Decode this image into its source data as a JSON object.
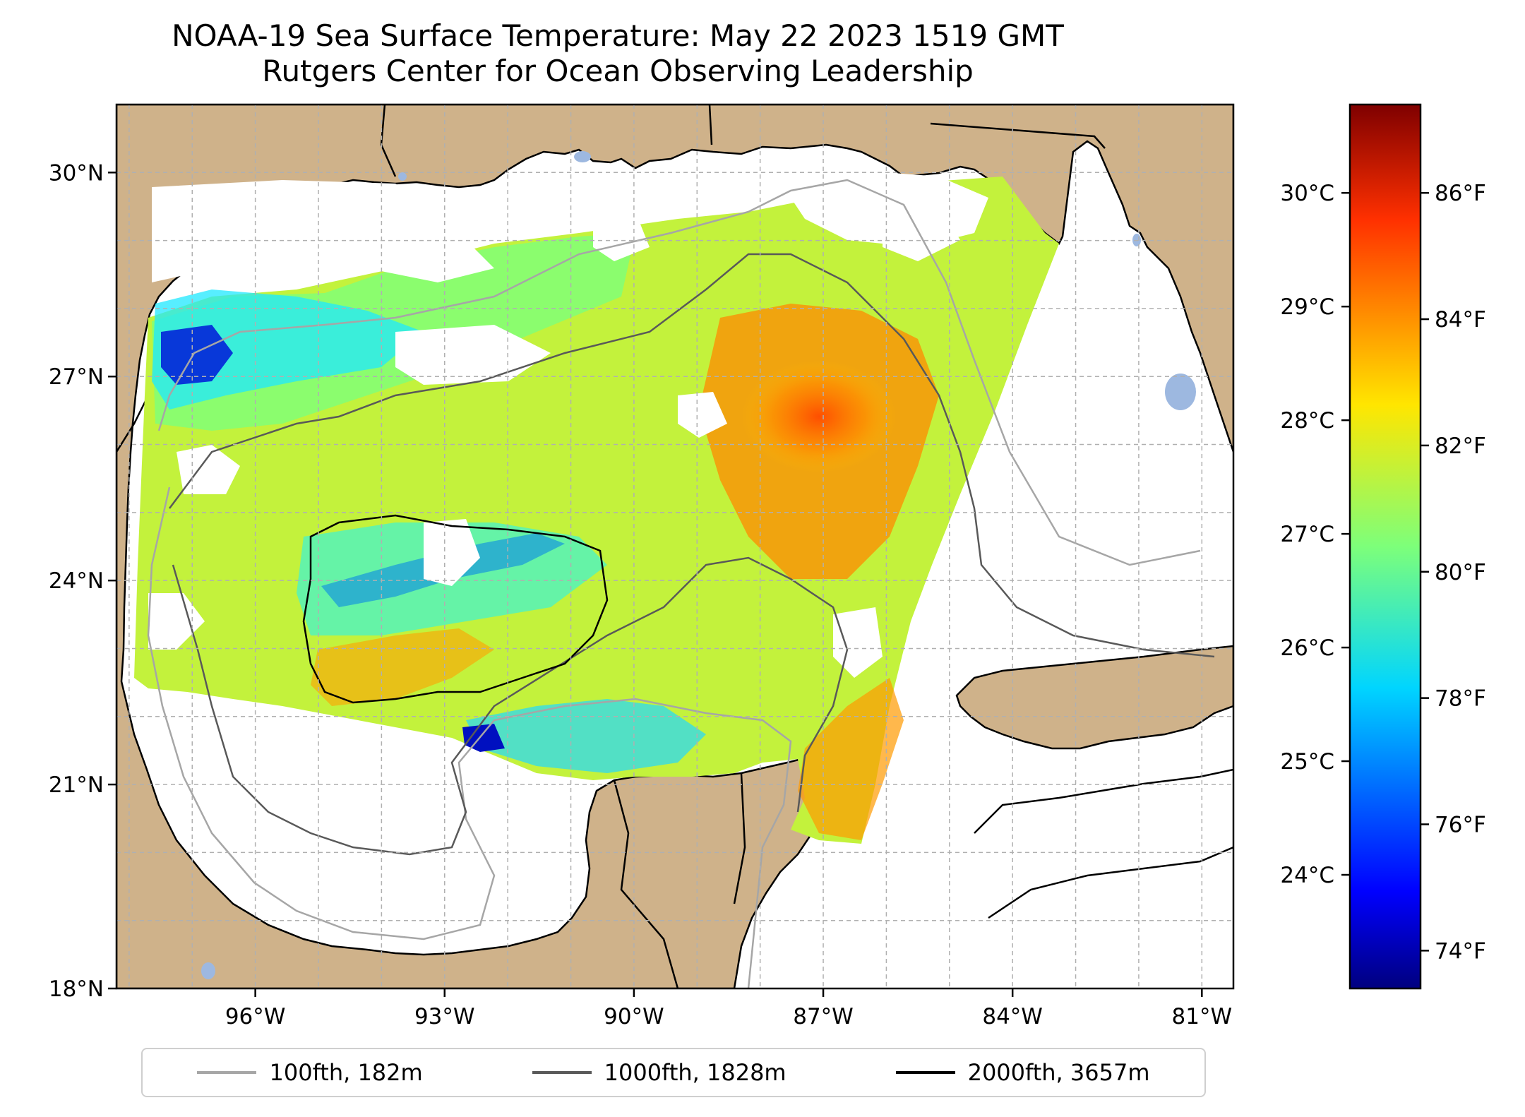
{
  "title": {
    "line1": "NOAA-19 Sea Surface Temperature: May 22 2023 1519 GMT",
    "line2": "Rutgers Center for Ocean Observing Leadership"
  },
  "map": {
    "lat_range": [
      18,
      31
    ],
    "lon_range": [
      -98.2,
      -80.5
    ],
    "lat_ticks": [
      {
        "value": 30,
        "label": "30°N"
      },
      {
        "value": 27,
        "label": "27°N"
      },
      {
        "value": 24,
        "label": "24°N"
      },
      {
        "value": 21,
        "label": "21°N"
      },
      {
        "value": 18,
        "label": "18°N"
      }
    ],
    "lon_ticks": [
      {
        "value": -96,
        "label": "96°W"
      },
      {
        "value": -93,
        "label": "93°W"
      },
      {
        "value": -90,
        "label": "90°W"
      },
      {
        "value": -87,
        "label": "87°W"
      },
      {
        "value": -84,
        "label": "84°W"
      },
      {
        "value": -81,
        "label": "81°W"
      }
    ],
    "gridlines": true,
    "colors": {
      "land": "#cfb28a",
      "lakes": "#9db8e0",
      "coastline": "#000000",
      "grid": "#b0b0b0"
    }
  },
  "colorbar": {
    "colormap": "jet",
    "celsius_ticks": [
      {
        "value": 30,
        "label": "30°C"
      },
      {
        "value": 29,
        "label": "29°C"
      },
      {
        "value": 28,
        "label": "28°C"
      },
      {
        "value": 27,
        "label": "27°C"
      },
      {
        "value": 26,
        "label": "26°C"
      },
      {
        "value": 25,
        "label": "25°C"
      },
      {
        "value": 24,
        "label": "24°C"
      }
    ],
    "fahrenheit_ticks": [
      {
        "value": 86,
        "label": "86°F"
      },
      {
        "value": 84,
        "label": "84°F"
      },
      {
        "value": 82,
        "label": "82°F"
      },
      {
        "value": 80,
        "label": "80°F"
      },
      {
        "value": 78,
        "label": "78°F"
      },
      {
        "value": 76,
        "label": "76°F"
      },
      {
        "value": 74,
        "label": "74°F"
      }
    ]
  },
  "legend": {
    "placement": "bottom-center",
    "items": [
      {
        "label": "100fth, 182m",
        "color": "#a6a6a6"
      },
      {
        "label": "1000fth, 1828m",
        "color": "#595959"
      },
      {
        "label": "2000fth, 3657m",
        "color": "#000000"
      }
    ]
  }
}
